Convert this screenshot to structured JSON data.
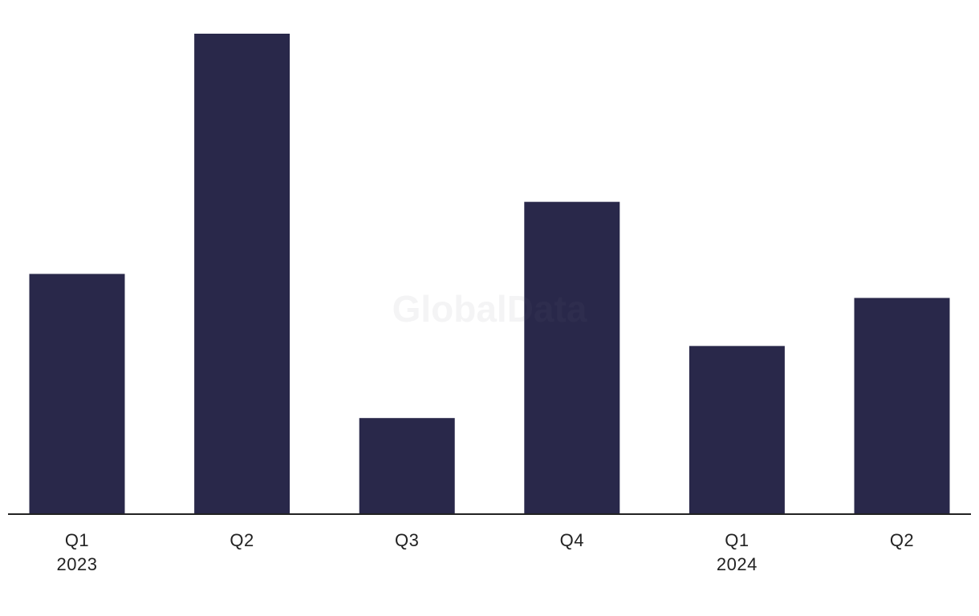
{
  "chart_data": {
    "type": "bar",
    "watermark": "GlobalData",
    "categories": [
      "Q1\n2023",
      "Q2",
      "Q3",
      "Q4",
      "Q1\n2024",
      "Q2"
    ],
    "values": [
      10,
      20,
      4,
      13,
      7,
      9
    ],
    "color": "#29284a",
    "ylim": [
      0,
      20
    ]
  }
}
